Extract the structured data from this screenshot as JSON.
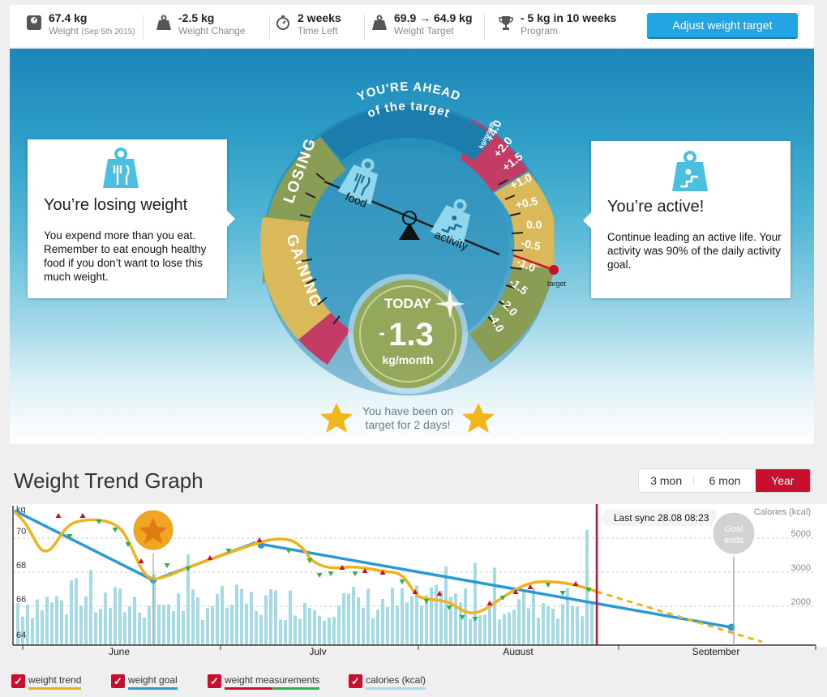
{
  "stats": {
    "weight": {
      "value": "67.4 kg",
      "label": "Weight",
      "date": "(Sep 5th 2015)"
    },
    "change": {
      "value": "-2.5 kg",
      "label": "Weight Change"
    },
    "time": {
      "value": "2 weeks",
      "label": "Time Left"
    },
    "target": {
      "value": "69.9 → 64.9 kg",
      "label": "Weight Target"
    },
    "program": {
      "value": "- 5 kg in 10 weeks",
      "label": "Program"
    },
    "adjust_label": "Adjust weight target"
  },
  "gauge": {
    "banner_line1": "YOU'RE AHEAD",
    "banner_line2": "of the target",
    "losing": "LOSING",
    "gaining": "GAINING",
    "food": "food",
    "activity": "activity",
    "unit": "kg/month",
    "scale": [
      "+4.0",
      "+2.0",
      "+1.5",
      "+1.0",
      "+0.5",
      "0.0",
      "-0.5",
      "-1.0",
      "-1.5",
      "-2.0",
      "-4.0"
    ],
    "target_label": "target",
    "today_label": "TODAY",
    "today_sign": "-",
    "today_value": "1.3",
    "today_unit": "kg/month",
    "on_target_line1": "You have been on",
    "on_target_line2": "target for 2 days!"
  },
  "cards": {
    "left": {
      "title": "You’re losing weight",
      "text": "You expend more than you eat. Remember to eat enough healthy food if you don’t want to lose this much weight."
    },
    "right": {
      "title": "You’re active!",
      "text": "Continue leading an active life. Your activity was 90% of the daily activity goal."
    }
  },
  "graph": {
    "title": "Weight Trend Graph",
    "ranges": [
      "3 mon",
      "6 mon",
      "Year"
    ],
    "active_range": "Year",
    "sync_label": "Last sync 28.08 08:23",
    "goal_label_1": "Goal",
    "goal_label_2": "ends",
    "y_unit": "kg",
    "y_right_label": "Calories (kcal)",
    "y_ticks": [
      "70",
      "68",
      "66",
      "64"
    ],
    "y_right_ticks": [
      "5000",
      "3000",
      "2000"
    ],
    "months": [
      "June",
      "July",
      "August",
      "September"
    ],
    "legend": [
      "weight trend",
      "weight goal",
      "weight measurements",
      "calories (kcal)"
    ],
    "colors": {
      "trend": "#f2a91c",
      "goal": "#2a9ad6",
      "up": "#c8102e",
      "down": "#2bb34a",
      "calories": "#a4dbe6",
      "sync": "#c8102e"
    }
  }
}
